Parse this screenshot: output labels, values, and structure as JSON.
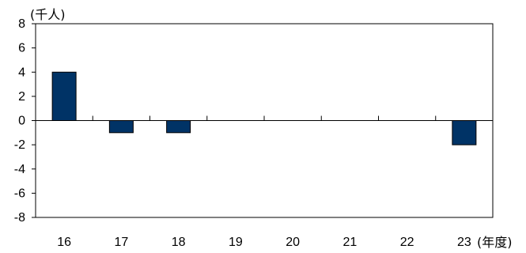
{
  "chart_data": {
    "type": "bar",
    "categories": [
      "16",
      "17",
      "18",
      "19",
      "20",
      "21",
      "22",
      "23"
    ],
    "values": [
      4,
      -1,
      -1,
      0,
      0,
      0,
      0,
      -2
    ],
    "ylabel": "(千人)",
    "xlabel": "(年度)",
    "ylim": [
      -8,
      8
    ],
    "yticks": [
      8,
      6,
      4,
      2,
      0,
      -2,
      -4,
      -6,
      -8
    ],
    "ytick_labels": [
      "8",
      "6",
      "4",
      "2",
      "0",
      "-2",
      "-4",
      "-6",
      "-8"
    ],
    "grid": false,
    "legend": "none",
    "bar_color": "#003366",
    "axis_color": "#000000"
  }
}
